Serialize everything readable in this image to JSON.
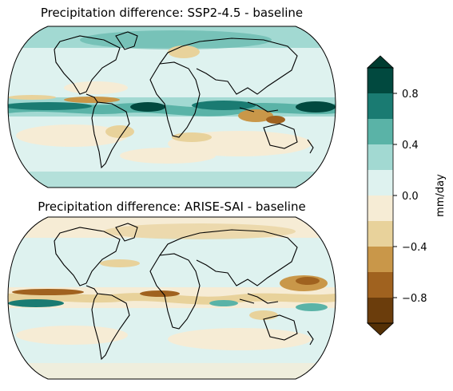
{
  "panels": [
    {
      "title": "Precipitation difference: SSP2-4.5 - baseline"
    },
    {
      "title": "Precipitation difference: ARISE-SAI - baseline"
    }
  ],
  "colorbar": {
    "label": "mm/day",
    "ticks": [
      "0.8",
      "0.4",
      "0.0",
      "−0.4",
      "−0.8"
    ],
    "extend": "both",
    "colors_top_to_bottom": [
      "#01493f",
      "#1a7b72",
      "#5ab3a7",
      "#a2d9d2",
      "#def2ef",
      "#f6ecd5",
      "#e8d29b",
      "#c99749",
      "#a0621f",
      "#6b3d0c"
    ],
    "over_color": "#003c30",
    "under_color": "#543005"
  }
}
